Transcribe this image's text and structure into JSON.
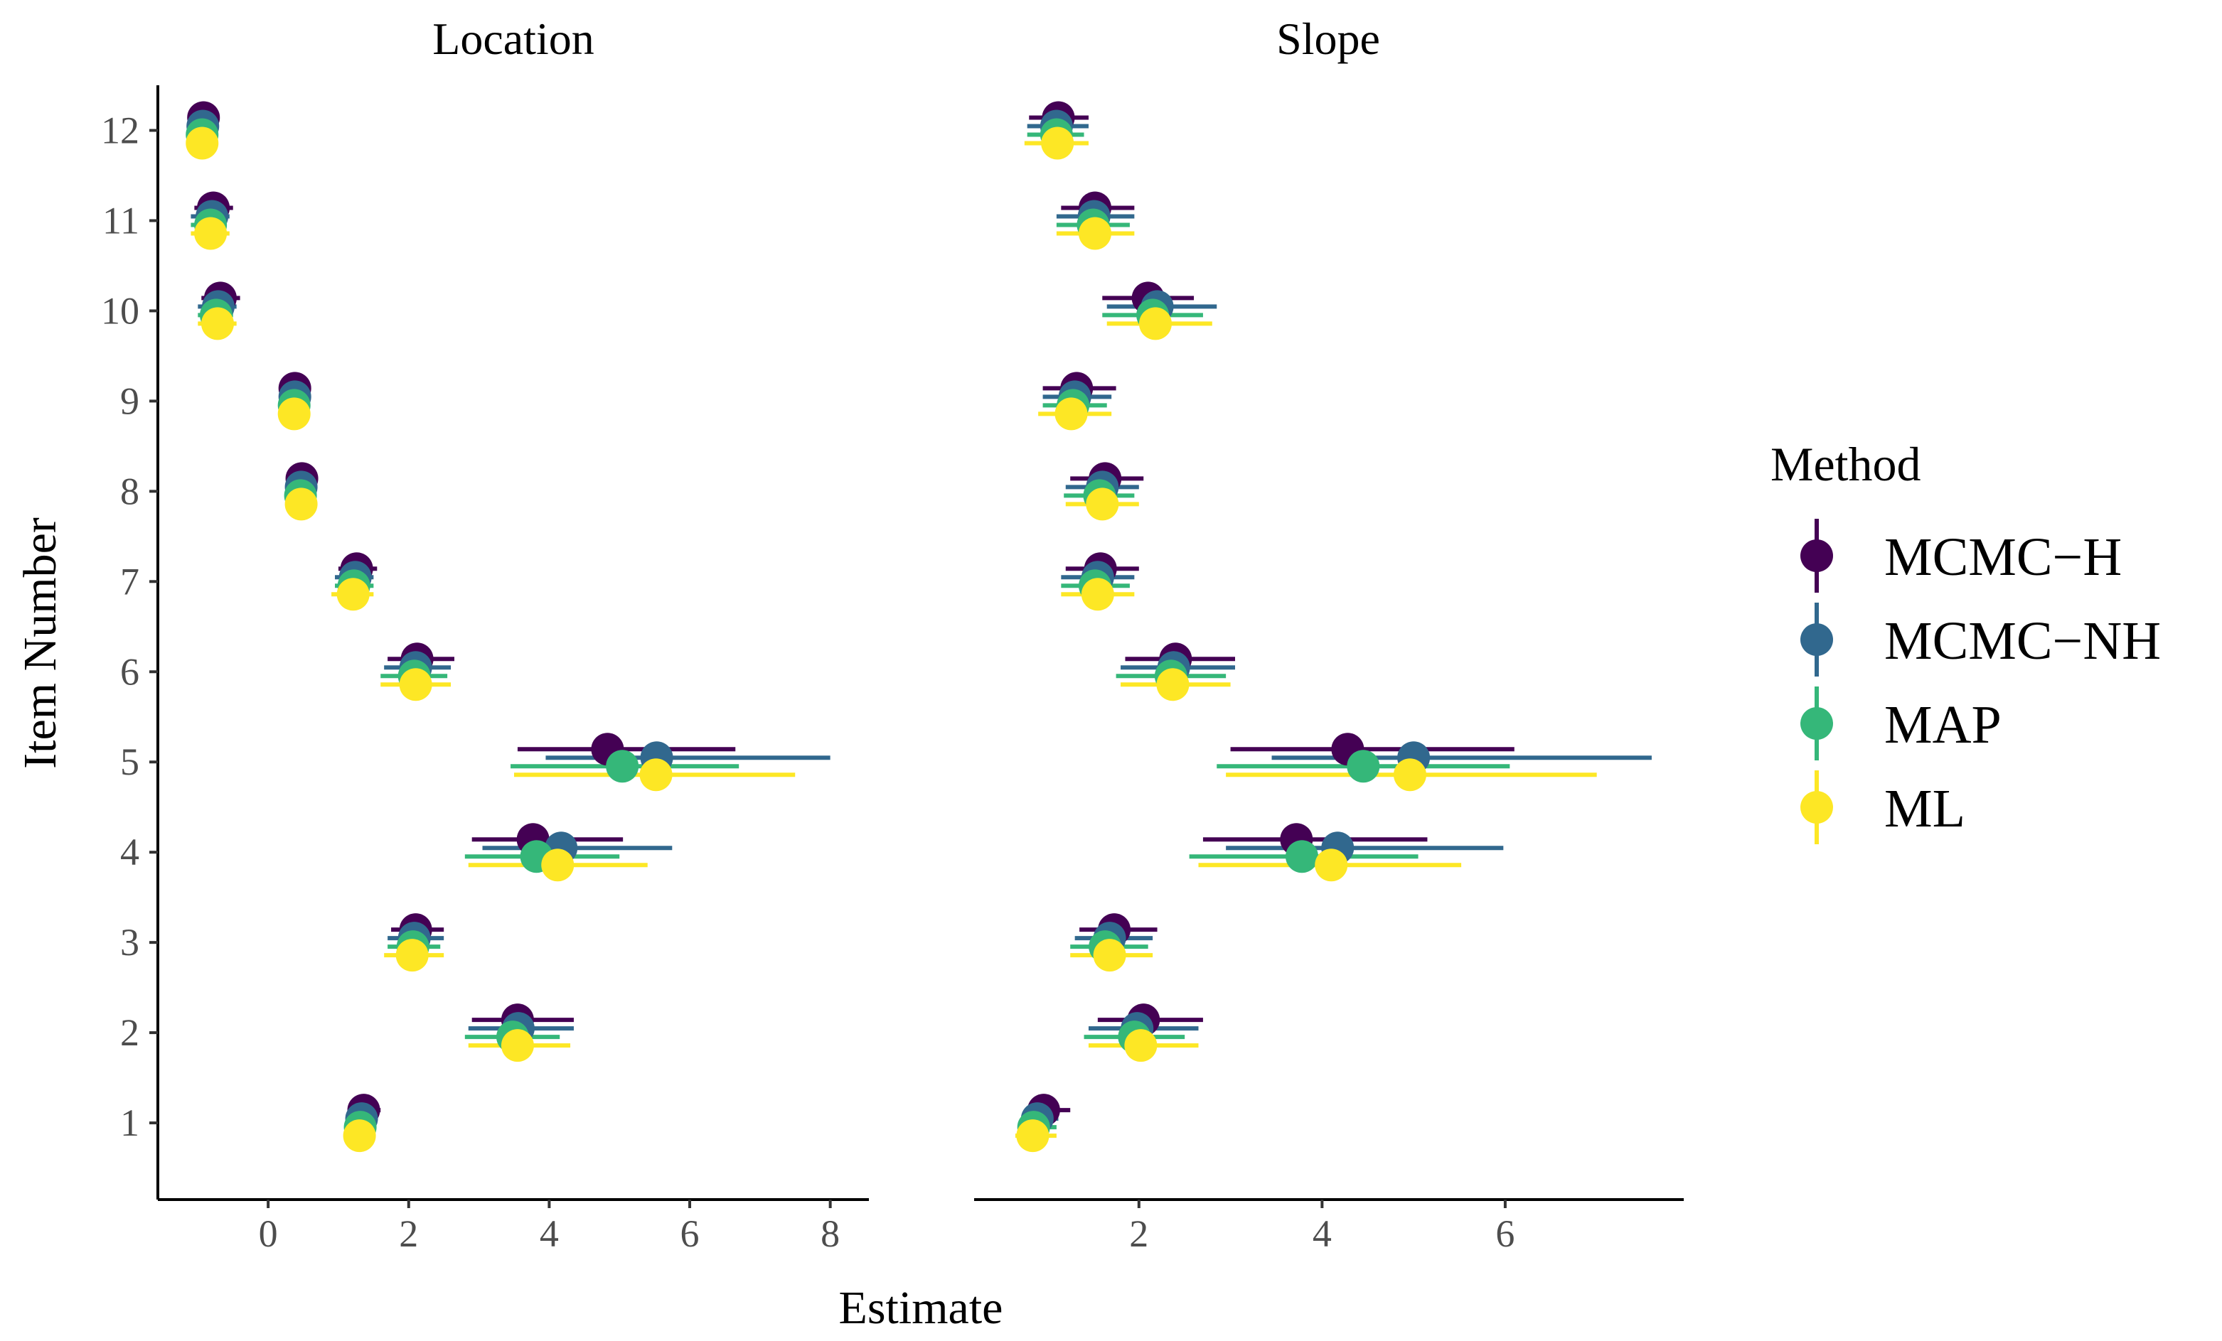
{
  "chart_data": {
    "type": "scatter",
    "subtype": "dot-and-whisker (point estimates with interval bars), faceted",
    "xlabel": "Estimate",
    "ylabel": "Item Number",
    "y_ticks": [
      1,
      2,
      3,
      4,
      5,
      6,
      7,
      8,
      9,
      10,
      11,
      12
    ],
    "legend": {
      "title": "Method",
      "position": "right",
      "entries": [
        {
          "name": "MCMC−H",
          "color": "#440154"
        },
        {
          "name": "MCMC−NH",
          "color": "#31688E"
        },
        {
          "name": "MAP",
          "color": "#35B779"
        },
        {
          "name": "ML",
          "color": "#FDE725"
        }
      ]
    },
    "panels": [
      {
        "title": "Location",
        "xlim": [
          -1.57,
          8.55
        ],
        "x_ticks": [
          0,
          2,
          4,
          6,
          8
        ],
        "series": [
          {
            "name": "MCMC−H",
            "items": [
              1,
              2,
              3,
              4,
              5,
              6,
              7,
              8,
              9,
              10,
              11,
              12
            ],
            "estimate": [
              1.36,
              3.55,
              2.1,
              3.77,
              4.83,
              2.12,
              1.26,
              0.48,
              0.38,
              -0.68,
              -0.78,
              -0.92
            ],
            "lower": [
              1.25,
              2.9,
              1.75,
              2.9,
              3.55,
              1.7,
              1.0,
              0.35,
              0.3,
              -0.95,
              -1.05,
              -1.0
            ],
            "upper": [
              1.6,
              4.35,
              2.5,
              5.05,
              6.65,
              2.65,
              1.55,
              0.65,
              0.55,
              -0.4,
              -0.5,
              -0.7
            ]
          },
          {
            "name": "MCMC−NH",
            "items": [
              1,
              2,
              3,
              4,
              5,
              6,
              7,
              8,
              9,
              10,
              11,
              12
            ],
            "estimate": [
              1.33,
              3.56,
              2.08,
              4.17,
              5.53,
              2.1,
              1.24,
              0.47,
              0.38,
              -0.71,
              -0.8,
              -0.93
            ],
            "lower": [
              1.2,
              2.85,
              1.7,
              3.05,
              3.95,
              1.65,
              0.95,
              0.3,
              0.28,
              -1.0,
              -1.1,
              -1.05
            ],
            "upper": [
              1.55,
              4.35,
              2.5,
              5.75,
              8.0,
              2.6,
              1.5,
              0.65,
              0.55,
              -0.45,
              -0.55,
              -0.75
            ]
          },
          {
            "name": "MAP",
            "items": [
              1,
              2,
              3,
              4,
              5,
              6,
              7,
              8,
              9,
              10,
              11,
              12
            ],
            "estimate": [
              1.31,
              3.48,
              2.06,
              3.82,
              5.04,
              2.08,
              1.22,
              0.46,
              0.37,
              -0.74,
              -0.82,
              -0.94
            ],
            "lower": [
              1.18,
              2.8,
              1.7,
              2.8,
              3.45,
              1.6,
              0.95,
              0.3,
              0.28,
              -1.0,
              -1.1,
              -1.05
            ],
            "upper": [
              1.5,
              4.15,
              2.45,
              5.0,
              6.7,
              2.55,
              1.5,
              0.62,
              0.52,
              -0.5,
              -0.6,
              -0.8
            ]
          },
          {
            "name": "ML",
            "items": [
              1,
              2,
              3,
              4,
              5,
              6,
              7,
              8,
              9,
              10,
              11,
              12
            ],
            "estimate": [
              1.3,
              3.55,
              2.05,
              4.12,
              5.52,
              2.1,
              1.21,
              0.47,
              0.37,
              -0.72,
              -0.82,
              -0.94
            ],
            "lower": [
              1.15,
              2.85,
              1.65,
              2.85,
              3.5,
              1.6,
              0.9,
              0.3,
              0.25,
              -1.0,
              -1.1,
              -1.05
            ],
            "upper": [
              1.5,
              4.3,
              2.5,
              5.4,
              7.5,
              2.6,
              1.5,
              0.65,
              0.55,
              -0.45,
              -0.55,
              -0.75
            ]
          }
        ]
      },
      {
        "title": "Slope",
        "xlim": [
          0.2,
          7.95
        ],
        "x_ticks": [
          2,
          4,
          6
        ],
        "series": [
          {
            "name": "MCMC−H",
            "items": [
              1,
              2,
              3,
              4,
              5,
              6,
              7,
              8,
              9,
              10,
              11,
              12
            ],
            "estimate": [
              0.96,
              2.05,
              1.73,
              3.72,
              4.28,
              2.4,
              1.58,
              1.63,
              1.32,
              2.1,
              1.52,
              1.12
            ],
            "lower": [
              0.8,
              1.55,
              1.35,
              2.7,
              3.0,
              1.85,
              1.2,
              1.25,
              0.95,
              1.6,
              1.15,
              0.8
            ],
            "upper": [
              1.25,
              2.7,
              2.2,
              5.15,
              6.1,
              3.05,
              2.0,
              2.05,
              1.75,
              2.6,
              1.95,
              1.45
            ]
          },
          {
            "name": "MCMC−NH",
            "items": [
              1,
              2,
              3,
              4,
              5,
              6,
              7,
              8,
              9,
              10,
              11,
              12
            ],
            "estimate": [
              0.89,
              1.98,
              1.68,
              4.17,
              5.0,
              2.38,
              1.55,
              1.6,
              1.3,
              2.2,
              1.51,
              1.1
            ],
            "lower": [
              0.72,
              1.45,
              1.3,
              2.95,
              3.45,
              1.8,
              1.15,
              1.2,
              0.95,
              1.65,
              1.1,
              0.78
            ],
            "upper": [
              1.12,
              2.65,
              2.15,
              5.98,
              7.6,
              3.05,
              1.95,
              2.0,
              1.7,
              2.85,
              1.95,
              1.45
            ]
          },
          {
            "name": "MAP",
            "items": [
              1,
              2,
              3,
              4,
              5,
              6,
              7,
              8,
              9,
              10,
              11,
              12
            ],
            "estimate": [
              0.85,
              1.95,
              1.63,
              3.78,
              4.45,
              2.35,
              1.52,
              1.57,
              1.28,
              2.15,
              1.5,
              1.1
            ],
            "lower": [
              0.7,
              1.4,
              1.25,
              2.55,
              2.85,
              1.75,
              1.15,
              1.18,
              0.95,
              1.6,
              1.1,
              0.78
            ],
            "upper": [
              1.1,
              2.5,
              2.1,
              5.05,
              6.05,
              2.95,
              1.9,
              1.95,
              1.65,
              2.7,
              1.9,
              1.4
            ]
          },
          {
            "name": "ML",
            "items": [
              1,
              2,
              3,
              4,
              5,
              6,
              7,
              8,
              9,
              10,
              11,
              12
            ],
            "estimate": [
              0.84,
              2.02,
              1.68,
              4.1,
              4.96,
              2.37,
              1.55,
              1.6,
              1.26,
              2.18,
              1.52,
              1.11
            ],
            "lower": [
              0.65,
              1.45,
              1.25,
              2.65,
              2.95,
              1.8,
              1.15,
              1.2,
              0.9,
              1.65,
              1.1,
              0.75
            ],
            "upper": [
              1.1,
              2.65,
              2.15,
              5.52,
              7.0,
              3.0,
              1.95,
              2.0,
              1.7,
              2.8,
              1.95,
              1.45
            ]
          }
        ]
      }
    ]
  }
}
